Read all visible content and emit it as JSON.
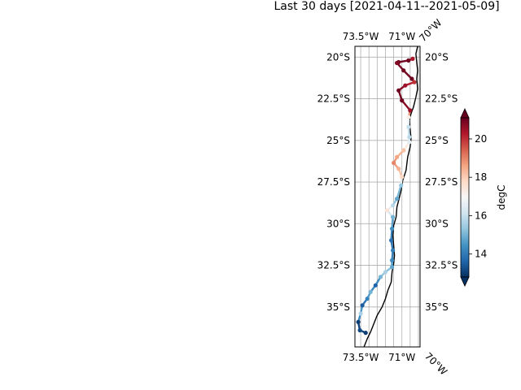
{
  "title": "Last 30 days [2021-04-11--2021-05-09]",
  "map": {
    "lat_ticks": [
      "20°S",
      "22.5°S",
      "25°S",
      "27.5°S",
      "30°S",
      "32.5°S",
      "35°S"
    ],
    "lon_ticks_top": [
      "73.5°W",
      "71°W",
      "70°W"
    ],
    "lon_ticks_bottom": [
      "73.5°W",
      "71°W",
      "70°W"
    ],
    "gridlines": true,
    "coastline_color": "#000000",
    "gridline_color": "#b0b0b0"
  },
  "colorbar": {
    "label": "degC",
    "tick_labels": [
      "14",
      "16",
      "18",
      "20"
    ],
    "ticks": [
      14,
      16,
      18,
      20
    ],
    "min": 12.8,
    "max": 21.1,
    "extend": "both",
    "colormap": "RdBu_r",
    "colors": [
      "#053061",
      "#2166ac",
      "#4393c3",
      "#92c5de",
      "#d1e5f0",
      "#f7f7f7",
      "#fddbc7",
      "#f4a582",
      "#d6604d",
      "#b2182b",
      "#67001f"
    ]
  },
  "chart_data": {
    "type": "scatter",
    "title": "Last 30 days [2021-04-11--2021-05-09]",
    "xlabel": "",
    "ylabel": "",
    "color_label": "degC",
    "points": [
      {
        "lon": -70.35,
        "lat": -20.1,
        "value": 20.3
      },
      {
        "lon": -70.6,
        "lat": -20.2,
        "value": 21.0
      },
      {
        "lon": -71.2,
        "lat": -20.3,
        "value": 21.0
      },
      {
        "lon": -71.3,
        "lat": -20.35,
        "value": 20.8
      },
      {
        "lon": -70.9,
        "lat": -20.8,
        "value": 21.0
      },
      {
        "lon": -70.4,
        "lat": -21.3,
        "value": 21.0
      },
      {
        "lon": -70.25,
        "lat": -21.5,
        "value": 20.0
      },
      {
        "lon": -70.8,
        "lat": -21.7,
        "value": 20.5
      },
      {
        "lon": -71.2,
        "lat": -22.0,
        "value": 21.0
      },
      {
        "lon": -71.0,
        "lat": -22.6,
        "value": 21.0
      },
      {
        "lon": -70.5,
        "lat": -23.2,
        "value": 20.5
      },
      {
        "lon": -70.6,
        "lat": -23.6,
        "value": 17.2
      },
      {
        "lon": -70.6,
        "lat": -24.2,
        "value": 16.0
      },
      {
        "lon": -70.55,
        "lat": -24.8,
        "value": 15.8
      },
      {
        "lon": -70.55,
        "lat": -25.1,
        "value": 16.5
      },
      {
        "lon": -70.9,
        "lat": -25.6,
        "value": 18.2
      },
      {
        "lon": -71.3,
        "lat": -26.0,
        "value": 18.6
      },
      {
        "lon": -71.5,
        "lat": -26.35,
        "value": 19.0
      },
      {
        "lon": -71.2,
        "lat": -26.7,
        "value": 18.4
      },
      {
        "lon": -71.0,
        "lat": -27.2,
        "value": 17.8
      },
      {
        "lon": -71.05,
        "lat": -27.7,
        "value": 15.3
      },
      {
        "lon": -71.3,
        "lat": -28.5,
        "value": 14.8
      },
      {
        "lon": -71.55,
        "lat": -28.9,
        "value": 15.8
      },
      {
        "lon": -71.9,
        "lat": -29.2,
        "value": 17.5
      },
      {
        "lon": -71.55,
        "lat": -29.6,
        "value": 15.0
      },
      {
        "lon": -71.6,
        "lat": -30.3,
        "value": 14.4
      },
      {
        "lon": -71.65,
        "lat": -31.0,
        "value": 13.8
      },
      {
        "lon": -71.55,
        "lat": -31.6,
        "value": 14.1
      },
      {
        "lon": -71.6,
        "lat": -32.2,
        "value": 14.3
      },
      {
        "lon": -71.6,
        "lat": -32.6,
        "value": 14.8
      },
      {
        "lon": -72.0,
        "lat": -32.9,
        "value": 15.6
      },
      {
        "lon": -72.3,
        "lat": -33.2,
        "value": 15.0
      },
      {
        "lon": -72.6,
        "lat": -33.7,
        "value": 13.6
      },
      {
        "lon": -72.9,
        "lat": -34.1,
        "value": 15.0
      },
      {
        "lon": -73.1,
        "lat": -34.5,
        "value": 14.2
      },
      {
        "lon": -73.4,
        "lat": -34.9,
        "value": 13.5
      },
      {
        "lon": -73.5,
        "lat": -35.4,
        "value": 15.6
      },
      {
        "lon": -73.65,
        "lat": -35.9,
        "value": 13.0
      },
      {
        "lon": -73.55,
        "lat": -36.4,
        "value": 13.2
      },
      {
        "lon": -73.2,
        "lat": -36.55,
        "value": 13.0
      }
    ]
  }
}
